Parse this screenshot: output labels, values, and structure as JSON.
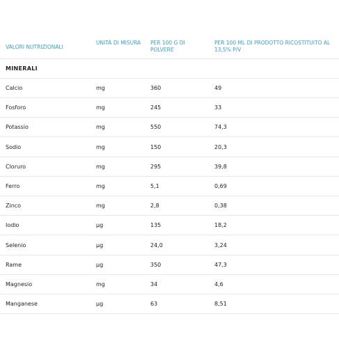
{
  "table": {
    "header": [
      "VALORI NUTRIZIONALI",
      "UNITÀ DI MISURA",
      "PER 100 G DI POLVERE",
      "PER 100 ML DI PRODOTTO RICOSTITUITO AL 13,5% P/V"
    ],
    "section": "MINERALI",
    "rows": [
      [
        "Calcio",
        "mg",
        "360",
        "49"
      ],
      [
        "Fosforo",
        "mg",
        "245",
        "33"
      ],
      [
        "Potassio",
        "mg",
        "550",
        "74,3"
      ],
      [
        "Sodio",
        "mg",
        "150",
        "20,3"
      ],
      [
        "Cloruro",
        "mg",
        "295",
        "39,8"
      ],
      [
        "Ferro",
        "mg",
        "5,1",
        "0,69"
      ],
      [
        "Zinco",
        "mg",
        "2,8",
        "0,38"
      ],
      [
        "Iodio",
        "µg",
        "135",
        "18,2"
      ],
      [
        "Selenio",
        "µg",
        "24,0",
        "3,24"
      ],
      [
        "Rame",
        "µg",
        "350",
        "47,3"
      ],
      [
        "Magnesio",
        "mg",
        "34",
        "4,6"
      ],
      [
        "Manganese",
        "µg",
        "63",
        "8,51"
      ]
    ]
  }
}
